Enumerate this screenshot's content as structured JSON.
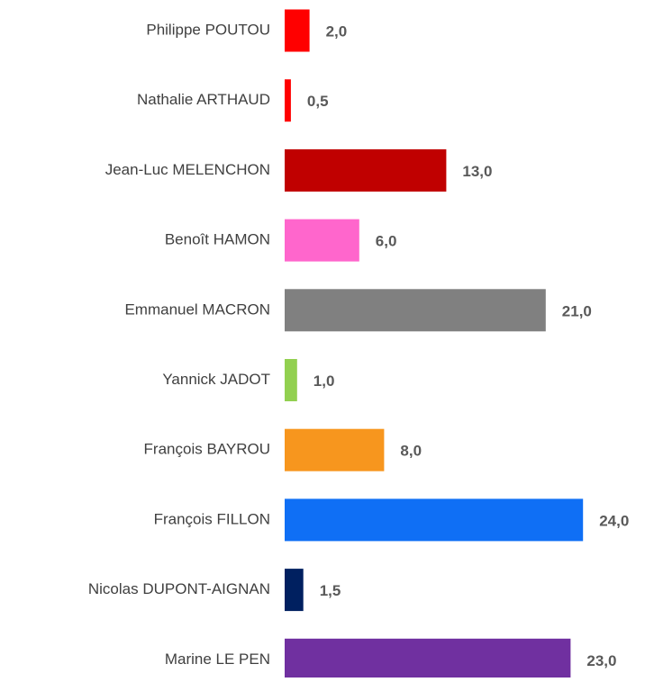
{
  "chart_data": {
    "type": "barh",
    "categories": [
      "Philippe POUTOU",
      "Nathalie ARTHAUD",
      "Jean-Luc MELENCHON",
      "Benoît HAMON",
      "Emmanuel MACRON",
      "Yannick JADOT",
      "François BAYROU",
      "François FILLON",
      "Nicolas DUPONT-AIGNAN",
      "Marine LE PEN"
    ],
    "values": [
      2.0,
      0.5,
      13.0,
      6.0,
      21.0,
      1.0,
      8.0,
      24.0,
      1.5,
      23.0
    ],
    "value_labels": [
      "2,0",
      "0,5",
      "13,0",
      "6,0",
      "21,0",
      "1,0",
      "8,0",
      "24,0",
      "1,5",
      "23,0"
    ],
    "colors": [
      "#ff0000",
      "#ff0000",
      "#c00000",
      "#ff66cc",
      "#808080",
      "#92d050",
      "#f7961e",
      "#0f6ff5",
      "#002060",
      "#7030a0"
    ]
  }
}
